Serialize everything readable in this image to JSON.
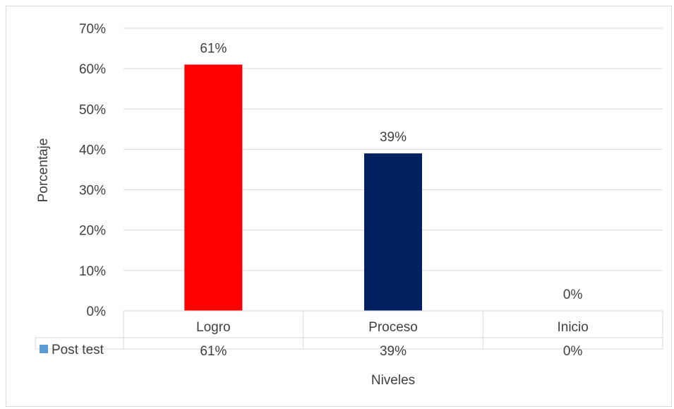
{
  "chart_data": {
    "type": "bar",
    "categories": [
      "Logro",
      "Proceso",
      "Inicio"
    ],
    "series": [
      {
        "name": "Post test",
        "values": [
          61,
          39,
          0
        ],
        "labels": [
          "61%",
          "39%",
          "0%"
        ]
      }
    ],
    "bar_colors": [
      "#ff0000",
      "#002060",
      "#4472c4"
    ],
    "legend_color": "#5b9bd5",
    "ylabel": "Porcentaje",
    "xlabel": "Niveles",
    "ylim": [
      0,
      70
    ],
    "yticks": [
      "0%",
      "10%",
      "20%",
      "30%",
      "40%",
      "50%",
      "60%",
      "70%"
    ],
    "grid": true,
    "data_table": true
  }
}
